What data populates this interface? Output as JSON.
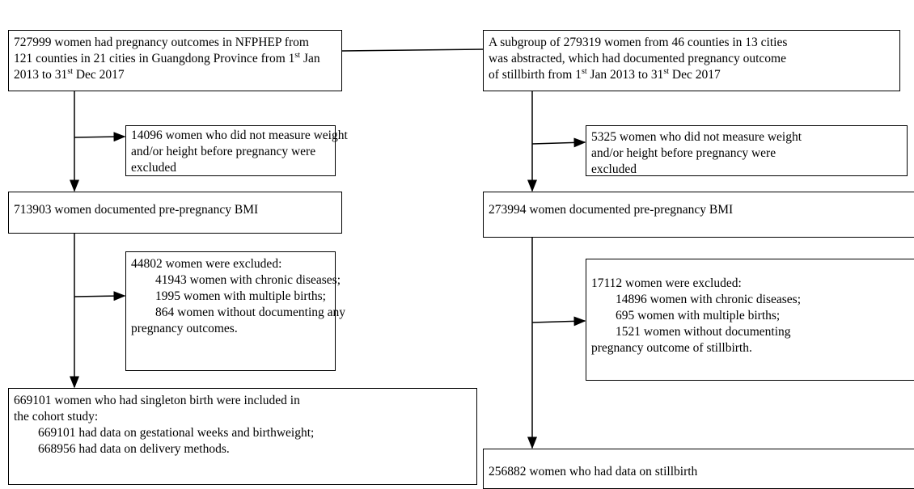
{
  "left": {
    "start": {
      "lines": [
        "727999 women had pregnancy outcomes in NFPHEP from",
        [
          "121 counties in 21 cities in Guangdong Province from 1",
          "st",
          " Jan"
        ],
        [
          "2013 to 31",
          "st",
          " Dec 2017"
        ]
      ]
    },
    "exclusion1": {
      "lines": [
        "14096 women who did not measure weight",
        "and/or height before pregnancy were",
        "excluded"
      ]
    },
    "bmi": {
      "lines": [
        "713903 women documented pre-pregnancy BMI"
      ]
    },
    "exclusion2": {
      "lines": [
        "44802 women were excluded:",
        "41943 women with chronic diseases;",
        "1995 women with multiple births;",
        "864 women without documenting any",
        "pregnancy outcomes."
      ]
    },
    "final": {
      "lines": [
        "669101 women who had singleton birth were included in",
        "the cohort study:",
        "669101 had data on gestational weeks and birthweight;",
        "668956 had data on delivery methods."
      ]
    }
  },
  "right": {
    "start": {
      "lines": [
        "A subgroup of 279319 women from 46 counties in 13 cities",
        "was abstracted, which had documented pregnancy outcome",
        [
          "of stillbirth from 1",
          "st",
          " Jan 2013 to 31",
          "st",
          " Dec 2017"
        ]
      ]
    },
    "exclusion1": {
      "lines": [
        "5325 women who did not measure weight",
        "and/or height before pregnancy were",
        "excluded"
      ]
    },
    "bmi": {
      "lines": [
        "273994 women documented pre-pregnancy BMI"
      ]
    },
    "exclusion2": {
      "lines": [
        "17112 women were excluded:",
        "14896 women with chronic diseases;",
        "695 women with multiple births;",
        "1521 women without documenting",
        "pregnancy outcome of stillbirth."
      ]
    },
    "final": {
      "lines": [
        "256882 women who had data on stillbirth"
      ]
    }
  }
}
